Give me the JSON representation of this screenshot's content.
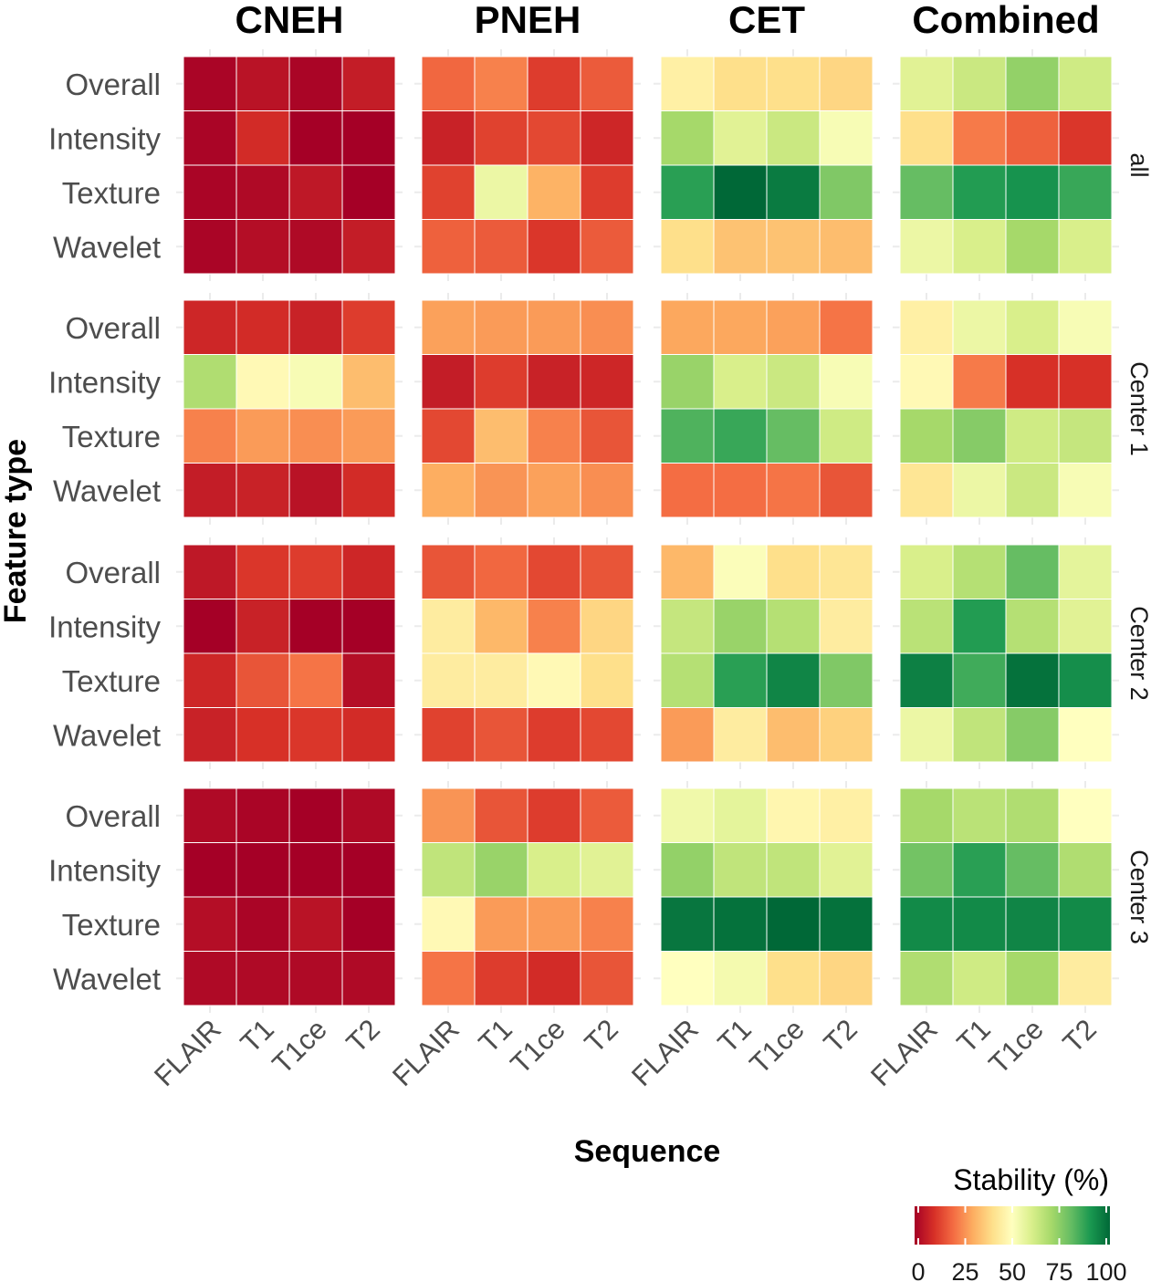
{
  "chart_data": {
    "type": "heatmap",
    "xlabel": "Sequence",
    "ylabel": "Feature type",
    "columns": [
      "CNEH",
      "PNEH",
      "CET",
      "Combined"
    ],
    "rows": [
      "all",
      "Center 1",
      "Center 2",
      "Center 3"
    ],
    "x_tick_labels": [
      [
        "FLAIR",
        "T1",
        "T1ce",
        "T2"
      ],
      [
        "FLAIR",
        "T1",
        "T1ce",
        "T2"
      ],
      [
        "FLAIR",
        "T1",
        "T1ce",
        "T2"
      ],
      [
        "FLAIR",
        "T1",
        "T1ce",
        "T2"
      ]
    ],
    "y_tick_labels": [
      "Overall",
      "Intensity",
      "Texture",
      "Wavelet"
    ],
    "legend": {
      "title": "Stability (%)",
      "ticks": [
        "0",
        "25",
        "50",
        "75",
        "100"
      ],
      "range": [
        0,
        100
      ],
      "palette": "RdYlGn",
      "stops": [
        "#a50026",
        "#d73027",
        "#f46d43",
        "#fdae61",
        "#fee08b",
        "#ffffbf",
        "#d9ef8b",
        "#a6d96a",
        "#66bd63",
        "#1a9850",
        "#006837"
      ]
    },
    "values": {
      "all": {
        "CNEH": [
          [
            1,
            4,
            1,
            6
          ],
          [
            1,
            9,
            0,
            0
          ],
          [
            1,
            2,
            5,
            0
          ],
          [
            1,
            3,
            2,
            6
          ]
        ],
        "PNEH": [
          [
            19,
            23,
            12,
            17
          ],
          [
            7,
            13,
            14,
            8
          ],
          [
            13,
            55,
            31,
            12
          ],
          [
            18,
            17,
            11,
            17
          ]
        ],
        "CET": [
          [
            45,
            40,
            40,
            38
          ],
          [
            70,
            58,
            63,
            52
          ],
          [
            88,
            100,
            96,
            76
          ],
          [
            40,
            34,
            34,
            33
          ]
        ],
        "Combined": [
          [
            58,
            63,
            73,
            62
          ],
          [
            40,
            22,
            18,
            11
          ],
          [
            80,
            89,
            91,
            86
          ],
          [
            55,
            60,
            70,
            60
          ]
        ]
      },
      "Center 1": {
        "CNEH": [
          [
            8,
            9,
            7,
            12
          ],
          [
            68,
            48,
            52,
            33
          ],
          [
            23,
            27,
            25,
            27
          ],
          [
            6,
            7,
            4,
            9
          ]
        ],
        "PNEH": [
          [
            28,
            27,
            27,
            25
          ],
          [
            6,
            12,
            7,
            8
          ],
          [
            14,
            33,
            23,
            16
          ],
          [
            30,
            26,
            28,
            25
          ]
        ],
        "CET": [
          [
            29,
            29,
            28,
            21
          ],
          [
            72,
            60,
            63,
            52
          ],
          [
            83,
            86,
            80,
            62
          ],
          [
            20,
            20,
            21,
            16
          ]
        ],
        "Combined": [
          [
            45,
            55,
            60,
            52
          ],
          [
            48,
            22,
            10,
            10
          ],
          [
            70,
            75,
            62,
            64
          ],
          [
            42,
            55,
            63,
            52
          ]
        ]
      },
      "Center 2": {
        "CNEH": [
          [
            5,
            11,
            12,
            8
          ],
          [
            0,
            7,
            0,
            0
          ],
          [
            8,
            16,
            21,
            3
          ],
          [
            7,
            10,
            11,
            9
          ]
        ],
        "PNEH": [
          [
            16,
            19,
            14,
            16
          ],
          [
            44,
            32,
            23,
            38
          ],
          [
            44,
            44,
            48,
            40
          ],
          [
            13,
            16,
            12,
            14
          ]
        ],
        "CET": [
          [
            32,
            51,
            40,
            42
          ],
          [
            64,
            72,
            67,
            44
          ],
          [
            67,
            88,
            94,
            76
          ],
          [
            27,
            44,
            33,
            37
          ]
        ],
        "Combined": [
          [
            60,
            67,
            80,
            57
          ],
          [
            66,
            89,
            67,
            58
          ],
          [
            95,
            85,
            98,
            92
          ],
          [
            55,
            65,
            75,
            50
          ]
        ]
      },
      "Center 3": {
        "CNEH": [
          [
            2,
            1,
            0,
            2
          ],
          [
            0,
            0,
            0,
            0
          ],
          [
            3,
            1,
            4,
            0
          ],
          [
            2,
            2,
            2,
            2
          ]
        ],
        "PNEH": [
          [
            26,
            16,
            12,
            17
          ],
          [
            65,
            72,
            60,
            58
          ],
          [
            48,
            27,
            27,
            23
          ],
          [
            21,
            12,
            9,
            16
          ]
        ],
        "CET": [
          [
            54,
            57,
            47,
            45
          ],
          [
            73,
            65,
            65,
            58
          ],
          [
            97,
            98,
            100,
            98
          ],
          [
            50,
            53,
            40,
            38
          ]
        ],
        "Combined": [
          [
            70,
            66,
            68,
            50
          ],
          [
            78,
            88,
            80,
            68
          ],
          [
            93,
            93,
            94,
            93
          ],
          [
            68,
            62,
            70,
            44
          ]
        ]
      }
    }
  }
}
